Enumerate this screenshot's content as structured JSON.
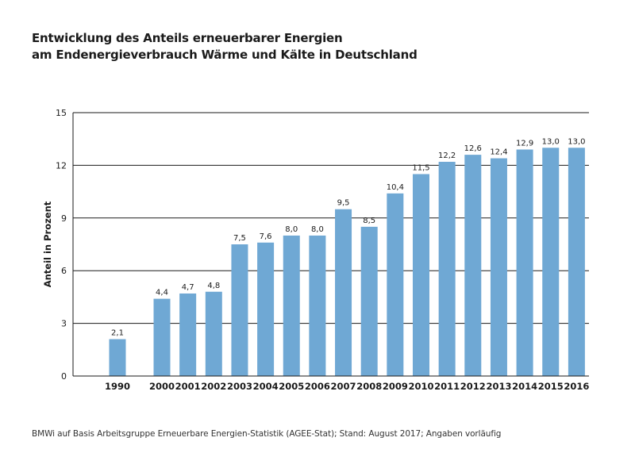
{
  "title_line1": "Entwicklung des Anteils erneuerbarer Energien",
  "title_line2": "am Endenergieverbrauch Wärme und Kälte in Deutschland",
  "source": "BMWi auf Basis Arbeitsgruppe Erneuerbare Energien-Statistik (AGEE-Stat); Stand: August 2017; Angaben vorläufig",
  "chart_data": {
    "type": "bar",
    "title": "Entwicklung des Anteils erneuerbarer Energien am Endenergieverbrauch Wärme und Kälte in Deutschland",
    "xlabel": "",
    "ylabel": "Anteil in Prozent",
    "ylim": [
      0,
      15
    ],
    "yticks": [
      0,
      3,
      6,
      9,
      12,
      15
    ],
    "categories": [
      "1990",
      "2000",
      "2001",
      "2002",
      "2003",
      "2004",
      "2005",
      "2006",
      "2007",
      "2008",
      "2009",
      "2010",
      "2011",
      "2012",
      "2013",
      "2014",
      "2015",
      "2016"
    ],
    "values": [
      2.1,
      4.4,
      4.7,
      4.8,
      7.5,
      7.6,
      8.0,
      8.0,
      9.5,
      8.5,
      10.4,
      11.5,
      12.2,
      12.6,
      12.4,
      12.9,
      13.0,
      13.0
    ],
    "data_labels": [
      "2,1",
      "4,4",
      "4,7",
      "4,8",
      "7,5",
      "7,6",
      "8,0",
      "8,0",
      "9,5",
      "8,5",
      "10,4",
      "11,5",
      "12,2",
      "12,6",
      "12,4",
      "12,9",
      "13,0",
      "13,0"
    ],
    "grid": true,
    "legend": "none",
    "bar_color": "#6fa8d4",
    "grid_color": "#1a1a1a"
  }
}
